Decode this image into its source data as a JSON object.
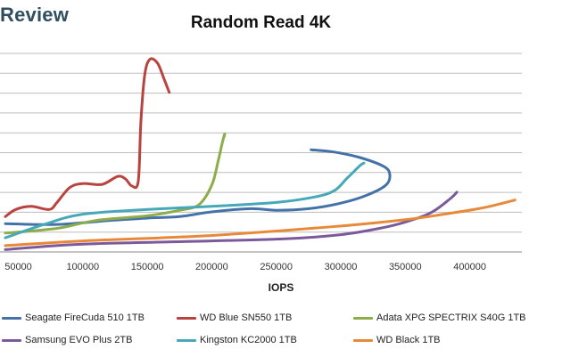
{
  "brand": "Review",
  "chart_data": {
    "type": "line",
    "title": "Random Read 4K",
    "xlabel": "IOPS",
    "ylabel": "",
    "xlim": [
      40000,
      435000
    ],
    "x_ticks": [
      50000,
      100000,
      150000,
      200000,
      250000,
      300000,
      350000,
      400000
    ],
    "x_tick_labels": [
      "50000",
      "100000",
      "150000",
      "200000",
      "250000",
      "300000",
      "350000",
      "400000"
    ],
    "y_gridline_count": 10,
    "grid": true,
    "legend_position": "bottom",
    "series": [
      {
        "name": "Seagate FireCuda 510 1TB",
        "color": "#4472a8",
        "points": [
          [
            40000,
            0.036
          ],
          [
            80000,
            0.035
          ],
          [
            120000,
            0.04
          ],
          [
            150000,
            0.043
          ],
          [
            175000,
            0.045
          ],
          [
            200000,
            0.051
          ],
          [
            230000,
            0.055
          ],
          [
            250000,
            0.053
          ],
          [
            275000,
            0.055
          ],
          [
            300000,
            0.062
          ],
          [
            320000,
            0.072
          ],
          [
            335000,
            0.085
          ],
          [
            338000,
            0.099
          ],
          [
            333000,
            0.109
          ],
          [
            315000,
            0.12
          ],
          [
            295000,
            0.127
          ],
          [
            277000,
            0.13
          ]
        ]
      },
      {
        "name": "WD Blue SN550 1TB",
        "color": "#b8433f",
        "points": [
          [
            40000,
            0.045
          ],
          [
            48000,
            0.054
          ],
          [
            60000,
            0.058
          ],
          [
            74000,
            0.054
          ],
          [
            80000,
            0.063
          ],
          [
            90000,
            0.082
          ],
          [
            100000,
            0.087
          ],
          [
            115000,
            0.086
          ],
          [
            127000,
            0.096
          ],
          [
            133000,
            0.093
          ],
          [
            138000,
            0.084
          ],
          [
            143000,
            0.09
          ],
          [
            145000,
            0.165
          ],
          [
            148000,
            0.225
          ],
          [
            152000,
            0.245
          ],
          [
            158000,
            0.24
          ],
          [
            163000,
            0.22
          ],
          [
            167000,
            0.203
          ]
        ]
      },
      {
        "name": "Adata XPG SPECTRIX S40G 1TB",
        "color": "#8cad4a",
        "points": [
          [
            40000,
            0.024
          ],
          [
            80000,
            0.03
          ],
          [
            110000,
            0.04
          ],
          [
            150000,
            0.046
          ],
          [
            175000,
            0.053
          ],
          [
            190000,
            0.06
          ],
          [
            200000,
            0.085
          ],
          [
            205000,
            0.116
          ],
          [
            208000,
            0.138
          ],
          [
            210000,
            0.15
          ],
          [
            209500,
            0.146
          ]
        ]
      },
      {
        "name": "Samsung EVO Plus 2TB",
        "color": "#7a5a9a",
        "points": [
          [
            40000,
            0.003
          ],
          [
            100000,
            0.01
          ],
          [
            200000,
            0.014
          ],
          [
            260000,
            0.017
          ],
          [
            300000,
            0.022
          ],
          [
            330000,
            0.03
          ],
          [
            350000,
            0.038
          ],
          [
            370000,
            0.05
          ],
          [
            385000,
            0.068
          ],
          [
            390000,
            0.076
          ]
        ]
      },
      {
        "name": "Kingston KC2000 1TB",
        "color": "#46a8b8",
        "points": [
          [
            40000,
            0.018
          ],
          [
            70000,
            0.035
          ],
          [
            100000,
            0.048
          ],
          [
            150000,
            0.054
          ],
          [
            200000,
            0.058
          ],
          [
            250000,
            0.063
          ],
          [
            280000,
            0.07
          ],
          [
            295000,
            0.078
          ],
          [
            305000,
            0.094
          ],
          [
            315000,
            0.11
          ],
          [
            318000,
            0.113
          ]
        ]
      },
      {
        "name": "WD Black 1TB",
        "color": "#e8893a",
        "points": [
          [
            40000,
            0.008
          ],
          [
            100000,
            0.014
          ],
          [
            200000,
            0.021
          ],
          [
            300000,
            0.033
          ],
          [
            350000,
            0.041
          ],
          [
            380000,
            0.048
          ],
          [
            410000,
            0.056
          ],
          [
            435000,
            0.066
          ]
        ]
      }
    ]
  }
}
